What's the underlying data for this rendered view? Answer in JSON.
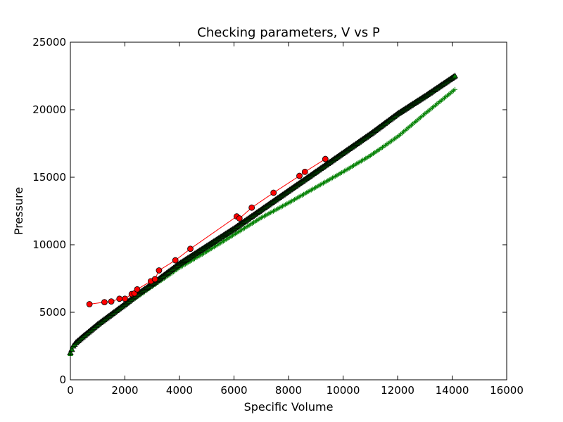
{
  "chart_data": {
    "type": "line",
    "title": "Checking parameters, V vs P",
    "xlabel": "Specific Volume",
    "ylabel": "Pressure",
    "xlim": [
      0,
      16000
    ],
    "ylim": [
      0,
      25000
    ],
    "xticks": [
      "0",
      "2000",
      "4000",
      "6000",
      "8000",
      "10000",
      "12000",
      "14000",
      "16000"
    ],
    "yticks": [
      "0",
      "5000",
      "10000",
      "15000",
      "20000",
      "25000"
    ],
    "grid": false,
    "legend": "none",
    "series": [
      {
        "style": "plus-markers",
        "color": "#008000",
        "x": [
          0,
          100,
          200,
          400,
          700,
          1000,
          1500,
          2000,
          2500,
          3000,
          4000,
          5000,
          6000,
          7000,
          8000,
          9000,
          10000,
          11000,
          12000,
          13000,
          14100
        ],
        "y": [
          1800,
          2400,
          2650,
          3000,
          3500,
          4000,
          4750,
          5500,
          6200,
          6900,
          8300,
          9500,
          10750,
          12000,
          13100,
          14250,
          15400,
          16600,
          18000,
          19700,
          21500
        ]
      },
      {
        "style": "triangle-markers",
        "color": "#008000",
        "edge": "#000000",
        "x": [
          0,
          100,
          200,
          400,
          700,
          1000,
          1500,
          2000,
          2500,
          3000,
          4000,
          5000,
          6000,
          7000,
          8000,
          9000,
          10000,
          11000,
          12000,
          13000,
          14100
        ],
        "y": [
          2000,
          2500,
          2750,
          3100,
          3600,
          4100,
          4850,
          5600,
          6400,
          7100,
          8600,
          9900,
          11200,
          12600,
          14000,
          15400,
          16800,
          18200,
          19700,
          21000,
          22500
        ]
      },
      {
        "style": "circle-line",
        "color": "#ff0000",
        "edge": "#000000",
        "x": [
          700,
          1250,
          1500,
          1800,
          2000,
          2250,
          2350,
          2450,
          2950,
          3100,
          3250,
          3850,
          4400,
          6100,
          6200,
          6650,
          7450,
          8400,
          8600,
          9350
        ],
        "y": [
          5600,
          5750,
          5800,
          6000,
          6000,
          6350,
          6400,
          6700,
          7300,
          7450,
          8100,
          8850,
          9700,
          12100,
          11950,
          12750,
          13850,
          15100,
          15400,
          16350
        ]
      }
    ]
  }
}
